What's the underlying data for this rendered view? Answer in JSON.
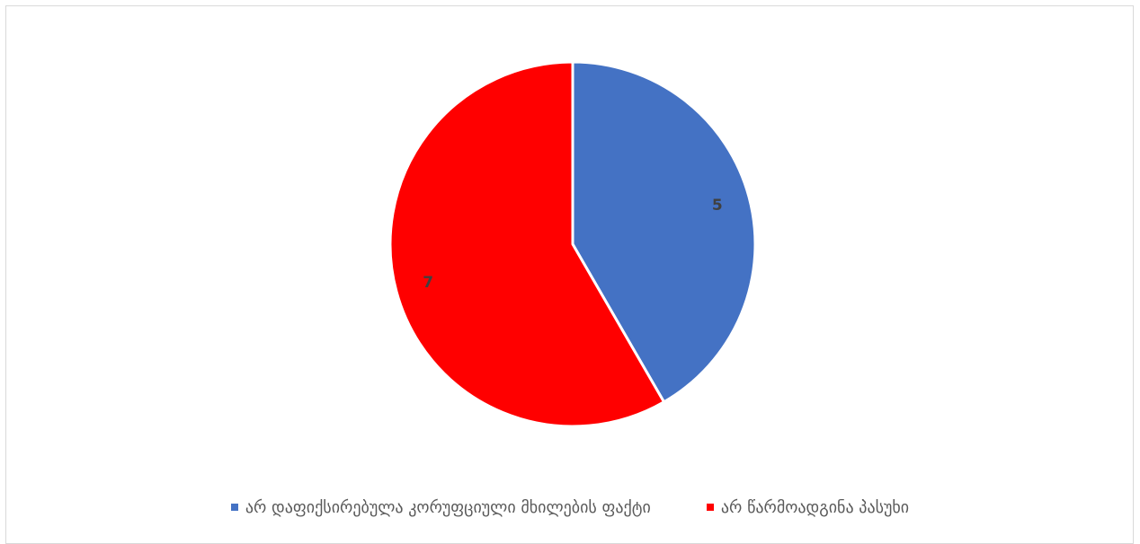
{
  "chart_data": {
    "type": "pie",
    "categories": [
      "არ დაფიქსირებულა კორუფციული მხილების ფაქტი",
      "არ წარმოადგინა პასუხი"
    ],
    "values": [
      5,
      7
    ],
    "data_labels": [
      "5",
      "7"
    ],
    "colors": [
      "#4472C4",
      "#FF0000"
    ],
    "legend_position": "bottom",
    "title": ""
  }
}
